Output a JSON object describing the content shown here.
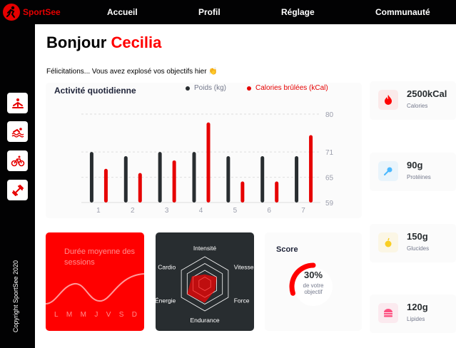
{
  "brand": {
    "name": "SportSee"
  },
  "nav": [
    "Accueil",
    "Profil",
    "Réglage",
    "Communauté"
  ],
  "sidebar": {
    "icons": [
      "yoga-icon",
      "swim-icon",
      "bike-icon",
      "dumbbell-icon"
    ],
    "copyright": "Copyright SportSee 2020"
  },
  "greeting": {
    "prefix": "Bonjour",
    "name": "Cecilia"
  },
  "message": "Félicitations... Vous avez explosé vos objectifs hier 👏",
  "activity": {
    "title": "Activité quotidienne",
    "legend_weight": "Poids (kg)",
    "legend_calories": "Calories brûlées (kCal)",
    "colors": {
      "weight": "#282d30",
      "calories": "#e60000"
    }
  },
  "sessions": {
    "title": "Durée moyenne des sessions",
    "days": [
      "L",
      "M",
      "M",
      "J",
      "V",
      "S",
      "D"
    ]
  },
  "performance": {
    "labels": [
      "Intensité",
      "Vitesse",
      "Force",
      "Endurance",
      "Énergie",
      "Cardio"
    ],
    "values": [
      0.35,
      0.5,
      0.45,
      0.7,
      0.75,
      0.55
    ]
  },
  "score": {
    "title": "Score",
    "value": "30%",
    "line1": "de votre",
    "line2": "objectif",
    "fraction": 0.3
  },
  "kpis": [
    {
      "value": "2500kCal",
      "label": "Calories",
      "icon": "flame-icon",
      "bg": "#fbeaea",
      "color": "#ff0000"
    },
    {
      "value": "90g",
      "label": "Protéines",
      "icon": "chicken-icon",
      "bg": "#e9f4fb",
      "color": "#4ab8ff"
    },
    {
      "value": "150g",
      "label": "Glucides",
      "icon": "apple-icon",
      "bg": "#fbf6e5",
      "color": "#f9ce23"
    },
    {
      "value": "120g",
      "label": "Lipides",
      "icon": "burger-icon",
      "bg": "#fbeaef",
      "color": "#fd5181"
    }
  ],
  "chart_data": {
    "type": "bar",
    "categories": [
      "1",
      "2",
      "3",
      "4",
      "5",
      "6",
      "7"
    ],
    "series": [
      {
        "name": "Poids (kg)",
        "values": [
          71,
          70,
          71,
          71,
          70,
          70,
          70
        ]
      },
      {
        "name": "Calories brûlées (kCal)",
        "values": [
          67,
          66,
          69,
          78,
          64,
          64,
          75
        ]
      }
    ],
    "yticks": [
      59,
      65,
      71,
      80
    ],
    "ylim": [
      59,
      80
    ],
    "legend": "top-right"
  }
}
